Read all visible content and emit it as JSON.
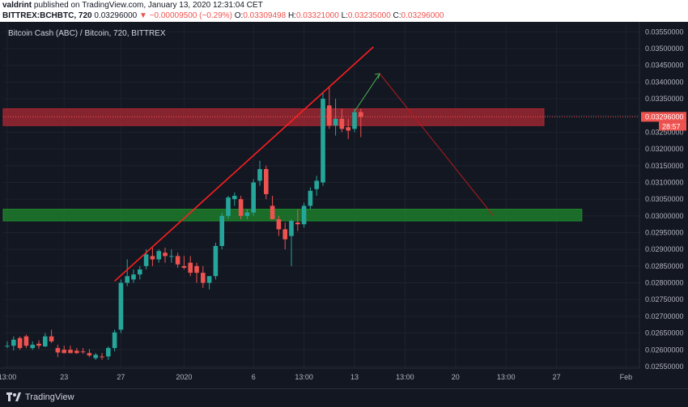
{
  "header": {
    "author": "valdrint",
    "published": "published on TradingView.com, January 13, 2020 12:31:04 CET",
    "symbol": "BITTREX:BCHBTC, 720",
    "last": "0.03296000",
    "change": "−0.00009500 (−0.29%)",
    "o_label": "O:",
    "o_val": "0.03309498",
    "h_label": "H:",
    "h_val": "0.03321000",
    "l_label": "L:",
    "l_val": "0.03235000",
    "c_label": "C:",
    "c_val": "0.03296000"
  },
  "footer": {
    "brand": "TradingView"
  },
  "colors": {
    "up": "#26a69a",
    "down": "#ef5350",
    "background": "#131722",
    "resistance": "#b22833",
    "support": "#1e8c2c",
    "trendline": "#ff1f1f",
    "projection_up": "#4caf50",
    "projection_down": "#b71c1c",
    "price_tag": "#ef5350"
  },
  "chart_data": {
    "type": "candlestick",
    "title": "Bitcoin Cash (ABC) / Bitcoin, 720, BITTREX",
    "ylim": [
      0.02545,
      0.03575
    ],
    "y_ticks": [
      "0.02550000",
      "0.02600000",
      "0.02650000",
      "0.02700000",
      "0.02750000",
      "0.02800000",
      "0.02850000",
      "0.02900000",
      "0.02950000",
      "0.03000000",
      "0.03050000",
      "0.03100000",
      "0.03150000",
      "0.03200000",
      "0.03250000",
      "0.03300000",
      "0.03350000",
      "0.03400000",
      "0.03450000",
      "0.03500000",
      "0.03550000"
    ],
    "x_ticks": [
      {
        "label": "13:00",
        "index": 0
      },
      {
        "label": "23",
        "index": 9
      },
      {
        "label": "27",
        "index": 18
      },
      {
        "label": "2020",
        "index": 28
      },
      {
        "label": "6",
        "index": 39
      },
      {
        "label": "13:00",
        "index": 47
      },
      {
        "label": "13",
        "index": 55
      },
      {
        "label": "13:00",
        "index": 63
      },
      {
        "label": "20",
        "index": 71
      },
      {
        "label": "13:00",
        "index": 79
      },
      {
        "label": "27",
        "index": 87
      },
      {
        "label": "Feb",
        "index": 98
      }
    ],
    "candles": [
      {
        "o": 0.0261,
        "h": 0.02625,
        "l": 0.02605,
        "c": 0.02612
      },
      {
        "o": 0.02612,
        "h": 0.0264,
        "l": 0.02598,
        "c": 0.0263
      },
      {
        "o": 0.02635,
        "h": 0.0264,
        "l": 0.026,
        "c": 0.02605
      },
      {
        "o": 0.0264,
        "h": 0.02645,
        "l": 0.02605,
        "c": 0.02612
      },
      {
        "o": 0.02605,
        "h": 0.02625,
        "l": 0.026,
        "c": 0.02615
      },
      {
        "o": 0.02618,
        "h": 0.02628,
        "l": 0.02603,
        "c": 0.02612
      },
      {
        "o": 0.0261,
        "h": 0.0265,
        "l": 0.02608,
        "c": 0.0264
      },
      {
        "o": 0.0264,
        "h": 0.0266,
        "l": 0.0262,
        "c": 0.02625
      },
      {
        "o": 0.02605,
        "h": 0.02615,
        "l": 0.02578,
        "c": 0.02592
      },
      {
        "o": 0.026,
        "h": 0.02612,
        "l": 0.0259,
        "c": 0.0259
      },
      {
        "o": 0.026,
        "h": 0.02612,
        "l": 0.0259,
        "c": 0.0259
      },
      {
        "o": 0.02597,
        "h": 0.02605,
        "l": 0.02588,
        "c": 0.0259
      },
      {
        "o": 0.02595,
        "h": 0.02605,
        "l": 0.02588,
        "c": 0.02593
      },
      {
        "o": 0.0259,
        "h": 0.02602,
        "l": 0.02578,
        "c": 0.02583
      },
      {
        "o": 0.02575,
        "h": 0.0259,
        "l": 0.0257,
        "c": 0.02585
      },
      {
        "o": 0.0258,
        "h": 0.0259,
        "l": 0.0257,
        "c": 0.02578
      },
      {
        "o": 0.0258,
        "h": 0.0261,
        "l": 0.0257,
        "c": 0.02605
      },
      {
        "o": 0.02605,
        "h": 0.0266,
        "l": 0.02595,
        "c": 0.02652
      },
      {
        "o": 0.0266,
        "h": 0.0281,
        "l": 0.0265,
        "c": 0.028
      },
      {
        "o": 0.028,
        "h": 0.0287,
        "l": 0.0279,
        "c": 0.0282
      },
      {
        "o": 0.0281,
        "h": 0.0284,
        "l": 0.028,
        "c": 0.02825
      },
      {
        "o": 0.02825,
        "h": 0.0285,
        "l": 0.0281,
        "c": 0.0284
      },
      {
        "o": 0.0285,
        "h": 0.029,
        "l": 0.0284,
        "c": 0.02885
      },
      {
        "o": 0.0288,
        "h": 0.02905,
        "l": 0.0285,
        "c": 0.0287
      },
      {
        "o": 0.0287,
        "h": 0.029,
        "l": 0.0286,
        "c": 0.02895
      },
      {
        "o": 0.0289,
        "h": 0.02905,
        "l": 0.0286,
        "c": 0.0288
      },
      {
        "o": 0.0288,
        "h": 0.029,
        "l": 0.0286,
        "c": 0.0288
      },
      {
        "o": 0.0288,
        "h": 0.0289,
        "l": 0.02845,
        "c": 0.02855
      },
      {
        "o": 0.0285,
        "h": 0.0288,
        "l": 0.0284,
        "c": 0.02845
      },
      {
        "o": 0.0286,
        "h": 0.0288,
        "l": 0.0282,
        "c": 0.0283
      },
      {
        "o": 0.0285,
        "h": 0.0286,
        "l": 0.028,
        "c": 0.0283
      },
      {
        "o": 0.0283,
        "h": 0.0285,
        "l": 0.02785,
        "c": 0.028
      },
      {
        "o": 0.028,
        "h": 0.0281,
        "l": 0.0278,
        "c": 0.0282
      },
      {
        "o": 0.0282,
        "h": 0.0292,
        "l": 0.0281,
        "c": 0.0291
      },
      {
        "o": 0.0291,
        "h": 0.0301,
        "l": 0.029,
        "c": 0.03
      },
      {
        "o": 0.03,
        "h": 0.0306,
        "l": 0.0299,
        "c": 0.03055
      },
      {
        "o": 0.0305,
        "h": 0.0307,
        "l": 0.0303,
        "c": 0.0306
      },
      {
        "o": 0.0305,
        "h": 0.0306,
        "l": 0.0299,
        "c": 0.03
      },
      {
        "o": 0.03,
        "h": 0.0302,
        "l": 0.0299,
        "c": 0.0301
      },
      {
        "o": 0.0301,
        "h": 0.0311,
        "l": 0.03,
        "c": 0.031
      },
      {
        "o": 0.03105,
        "h": 0.03165,
        "l": 0.0309,
        "c": 0.0314
      },
      {
        "o": 0.0314,
        "h": 0.0315,
        "l": 0.0305,
        "c": 0.03065
      },
      {
        "o": 0.0303,
        "h": 0.0306,
        "l": 0.0299,
        "c": 0.0299
      },
      {
        "o": 0.0299,
        "h": 0.03,
        "l": 0.0294,
        "c": 0.0296
      },
      {
        "o": 0.0296,
        "h": 0.0298,
        "l": 0.029,
        "c": 0.0293
      },
      {
        "o": 0.0294,
        "h": 0.0299,
        "l": 0.0285,
        "c": 0.02985
      },
      {
        "o": 0.0298,
        "h": 0.0302,
        "l": 0.02955,
        "c": 0.02975
      },
      {
        "o": 0.02975,
        "h": 0.0304,
        "l": 0.02965,
        "c": 0.0303
      },
      {
        "o": 0.0303,
        "h": 0.03085,
        "l": 0.0302,
        "c": 0.03075
      },
      {
        "o": 0.0308,
        "h": 0.0312,
        "l": 0.0306,
        "c": 0.03105
      },
      {
        "o": 0.031,
        "h": 0.0337,
        "l": 0.0309,
        "c": 0.0335
      },
      {
        "o": 0.0333,
        "h": 0.03385,
        "l": 0.0326,
        "c": 0.0327
      },
      {
        "o": 0.0327,
        "h": 0.0335,
        "l": 0.0324,
        "c": 0.0329
      },
      {
        "o": 0.0329,
        "h": 0.0332,
        "l": 0.0325,
        "c": 0.0326
      },
      {
        "o": 0.03265,
        "h": 0.0329,
        "l": 0.0323,
        "c": 0.03255
      },
      {
        "o": 0.0326,
        "h": 0.0332,
        "l": 0.0325,
        "c": 0.0331
      },
      {
        "o": 0.0331,
        "h": 0.0332,
        "l": 0.03235,
        "c": 0.03296
      }
    ],
    "zones": [
      {
        "name": "resistance",
        "from": 0.0327,
        "to": 0.0332,
        "start_index": 0,
        "end_index": 85
      },
      {
        "name": "support",
        "from": 0.02985,
        "to": 0.0302,
        "start_index": 0,
        "end_index": 91
      }
    ],
    "trendline": {
      "from": {
        "index": 17,
        "price": 0.02805
      },
      "to": {
        "index": 58,
        "price": 0.03505
      }
    },
    "projection_up": {
      "from": {
        "index": 55,
        "price": 0.03312
      },
      "to": {
        "index": 59,
        "price": 0.03425
      }
    },
    "projection_down": {
      "from": {
        "index": 59,
        "price": 0.03425
      },
      "to": {
        "index": 77,
        "price": 0.03
      }
    },
    "last_price": "0.03296000",
    "countdown": "28:57"
  }
}
